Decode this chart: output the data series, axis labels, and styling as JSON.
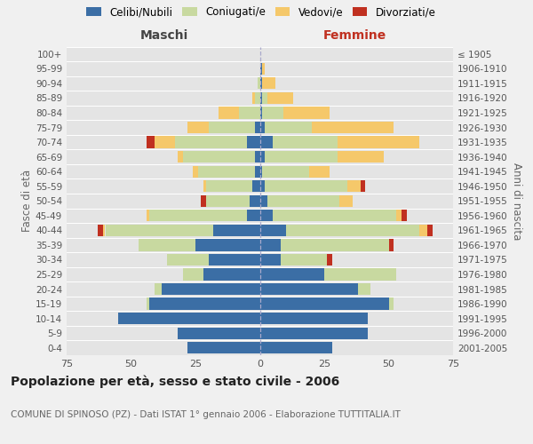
{
  "age_groups": [
    "0-4",
    "5-9",
    "10-14",
    "15-19",
    "20-24",
    "25-29",
    "30-34",
    "35-39",
    "40-44",
    "45-49",
    "50-54",
    "55-59",
    "60-64",
    "65-69",
    "70-74",
    "75-79",
    "80-84",
    "85-89",
    "90-94",
    "95-99",
    "100+"
  ],
  "birth_years": [
    "2001-2005",
    "1996-2000",
    "1991-1995",
    "1986-1990",
    "1981-1985",
    "1976-1980",
    "1971-1975",
    "1966-1970",
    "1961-1965",
    "1956-1960",
    "1951-1955",
    "1946-1950",
    "1941-1945",
    "1936-1940",
    "1931-1935",
    "1926-1930",
    "1921-1925",
    "1916-1920",
    "1911-1915",
    "1906-1910",
    "≤ 1905"
  ],
  "males_celibi": [
    28,
    32,
    55,
    43,
    38,
    22,
    20,
    25,
    18,
    5,
    4,
    3,
    2,
    2,
    5,
    2,
    0,
    0,
    0,
    0,
    0
  ],
  "males_coniugati": [
    0,
    0,
    0,
    1,
    3,
    8,
    16,
    22,
    42,
    38,
    17,
    18,
    22,
    28,
    28,
    18,
    8,
    2,
    1,
    0,
    0
  ],
  "males_vedovi": [
    0,
    0,
    0,
    0,
    0,
    0,
    0,
    0,
    1,
    1,
    0,
    1,
    2,
    2,
    8,
    8,
    8,
    1,
    0,
    0,
    0
  ],
  "males_divorziati": [
    0,
    0,
    0,
    0,
    0,
    0,
    0,
    0,
    2,
    0,
    2,
    0,
    0,
    0,
    3,
    0,
    0,
    0,
    0,
    0,
    0
  ],
  "females_nubili": [
    28,
    42,
    42,
    50,
    38,
    25,
    8,
    8,
    10,
    5,
    3,
    2,
    1,
    2,
    5,
    2,
    1,
    1,
    1,
    1,
    0
  ],
  "females_coniugate": [
    0,
    0,
    0,
    2,
    5,
    28,
    18,
    42,
    52,
    48,
    28,
    32,
    18,
    28,
    25,
    18,
    8,
    2,
    0,
    0,
    0
  ],
  "females_vedove": [
    0,
    0,
    0,
    0,
    0,
    0,
    0,
    0,
    3,
    2,
    5,
    5,
    8,
    18,
    32,
    32,
    18,
    10,
    5,
    1,
    0
  ],
  "females_divorziate": [
    0,
    0,
    0,
    0,
    0,
    0,
    2,
    2,
    2,
    2,
    0,
    2,
    0,
    0,
    0,
    0,
    0,
    0,
    0,
    0,
    0
  ],
  "color_celibi": "#3b6ea5",
  "color_coniugati": "#c8d9a0",
  "color_vedovi": "#f5c86a",
  "color_divorziati": "#c03020",
  "xlim": 75,
  "title": "Popolazione per età, sesso e stato civile - 2006",
  "subtitle": "COMUNE DI SPINOSO (PZ) - Dati ISTAT 1° gennaio 2006 - Elaborazione TUTTITALIA.IT",
  "ylabel_left": "Fasce di età",
  "ylabel_right": "Anni di nascita",
  "label_maschi": "Maschi",
  "label_femmine": "Femmine",
  "legend_labels": [
    "Celibi/Nubili",
    "Coniugati/e",
    "Vedovi/e",
    "Divorziati/e"
  ],
  "bg_color": "#f0f0f0",
  "plot_bg": "#e4e4e4"
}
